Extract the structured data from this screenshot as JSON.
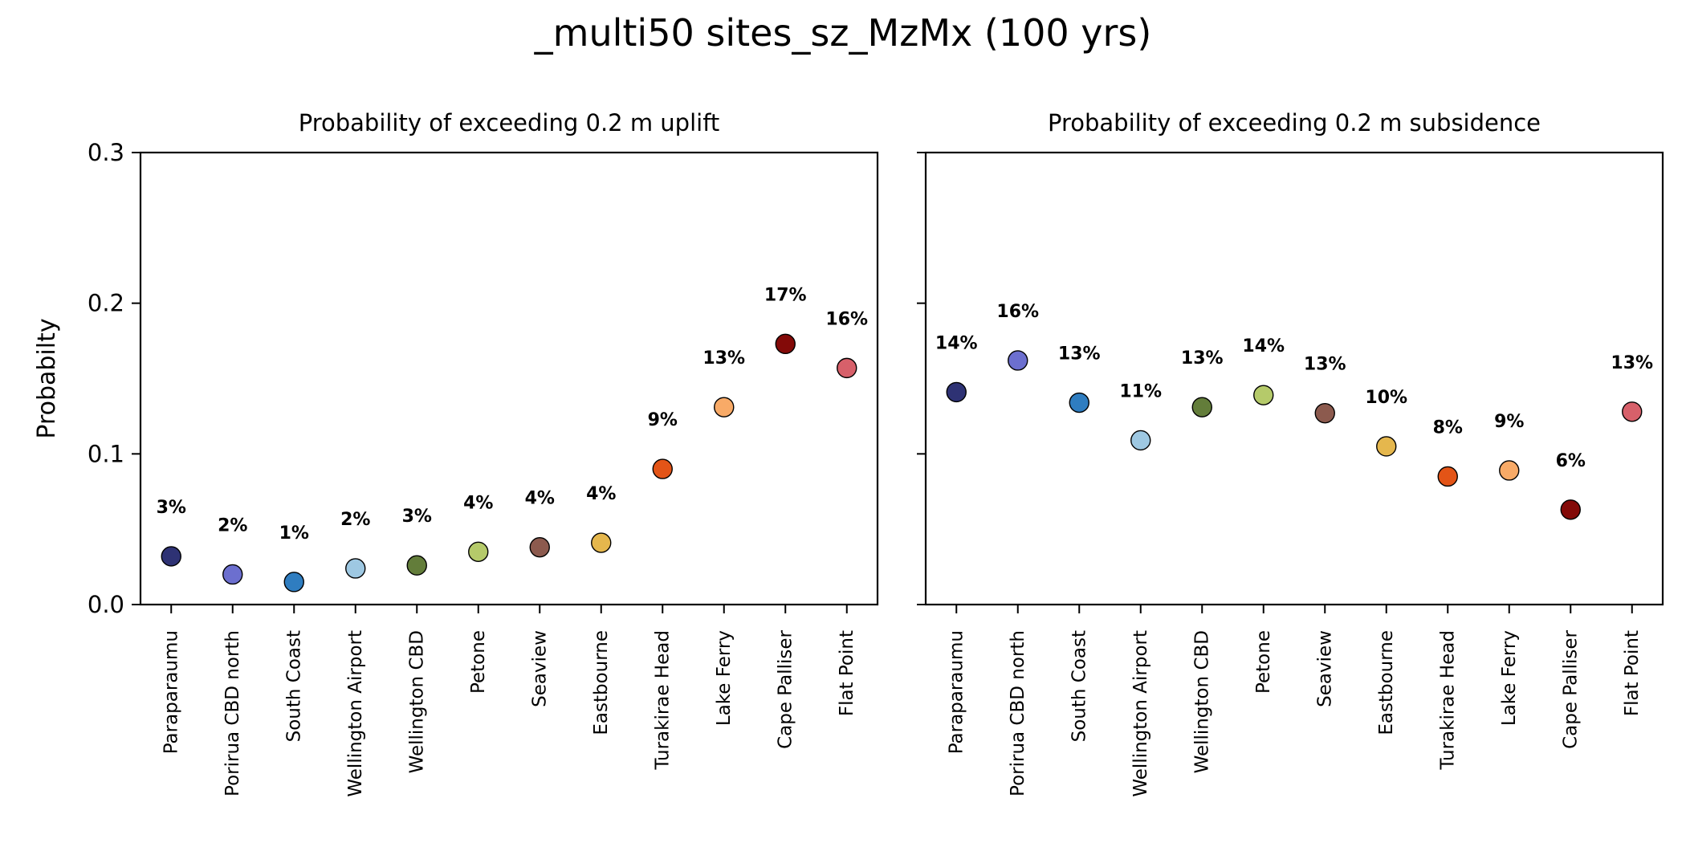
{
  "figure": {
    "title": "_multi50 sites_sz_MzMx (100 yrs)"
  },
  "chart_data": [
    {
      "type": "scatter",
      "title": "Probability of exceeding 0.2 m uplift",
      "xlabel": "",
      "ylabel": "Probabilty",
      "ylim": [
        0,
        0.3
      ],
      "yticks": [
        0.0,
        0.1,
        0.2,
        0.3
      ],
      "ytick_labels": [
        "0.0",
        "0.1",
        "0.2",
        "0.3"
      ],
      "grid": false,
      "categories": [
        "Paraparaumu",
        "Porirua CBD north",
        "South Coast",
        "Wellington Airport",
        "Wellington CBD",
        "Petone",
        "Seaview",
        "Eastbourne",
        "Turakirae Head",
        "Lake Ferry",
        "Cape Palliser",
        "Flat Point"
      ],
      "values": [
        0.032,
        0.02,
        0.015,
        0.024,
        0.026,
        0.035,
        0.038,
        0.041,
        0.09,
        0.131,
        0.173,
        0.157
      ],
      "data_labels": [
        "3%",
        "2%",
        "1%",
        "2%",
        "3%",
        "4%",
        "4%",
        "4%",
        "9%",
        "13%",
        "17%",
        "16%"
      ],
      "colors": [
        "#2e3274",
        "#6c6fcf",
        "#2f7dc0",
        "#9ec8e2",
        "#637d3a",
        "#b5ca6a",
        "#8c5a4e",
        "#e5b74d",
        "#e35417",
        "#f8aa67",
        "#830a08",
        "#d7606a"
      ]
    },
    {
      "type": "scatter",
      "title": "Probability of exceeding 0.2 m subsidence",
      "xlabel": "",
      "ylabel": "",
      "ylim": [
        0,
        0.3
      ],
      "yticks": [
        0.0,
        0.1,
        0.2,
        0.3
      ],
      "ytick_labels": [],
      "grid": false,
      "categories": [
        "Paraparaumu",
        "Porirua CBD north",
        "South Coast",
        "Wellington Airport",
        "Wellington CBD",
        "Petone",
        "Seaview",
        "Eastbourne",
        "Turakirae Head",
        "Lake Ferry",
        "Cape Palliser",
        "Flat Point"
      ],
      "values": [
        0.141,
        0.162,
        0.134,
        0.109,
        0.131,
        0.139,
        0.127,
        0.105,
        0.085,
        0.089,
        0.063,
        0.128
      ],
      "data_labels": [
        "14%",
        "16%",
        "13%",
        "11%",
        "13%",
        "14%",
        "13%",
        "10%",
        "8%",
        "9%",
        "6%",
        "13%"
      ],
      "colors": [
        "#2e3274",
        "#6c6fcf",
        "#2f7dc0",
        "#9ec8e2",
        "#637d3a",
        "#b5ca6a",
        "#8c5a4e",
        "#e5b74d",
        "#e35417",
        "#f8aa67",
        "#830a08",
        "#d7606a"
      ]
    }
  ]
}
